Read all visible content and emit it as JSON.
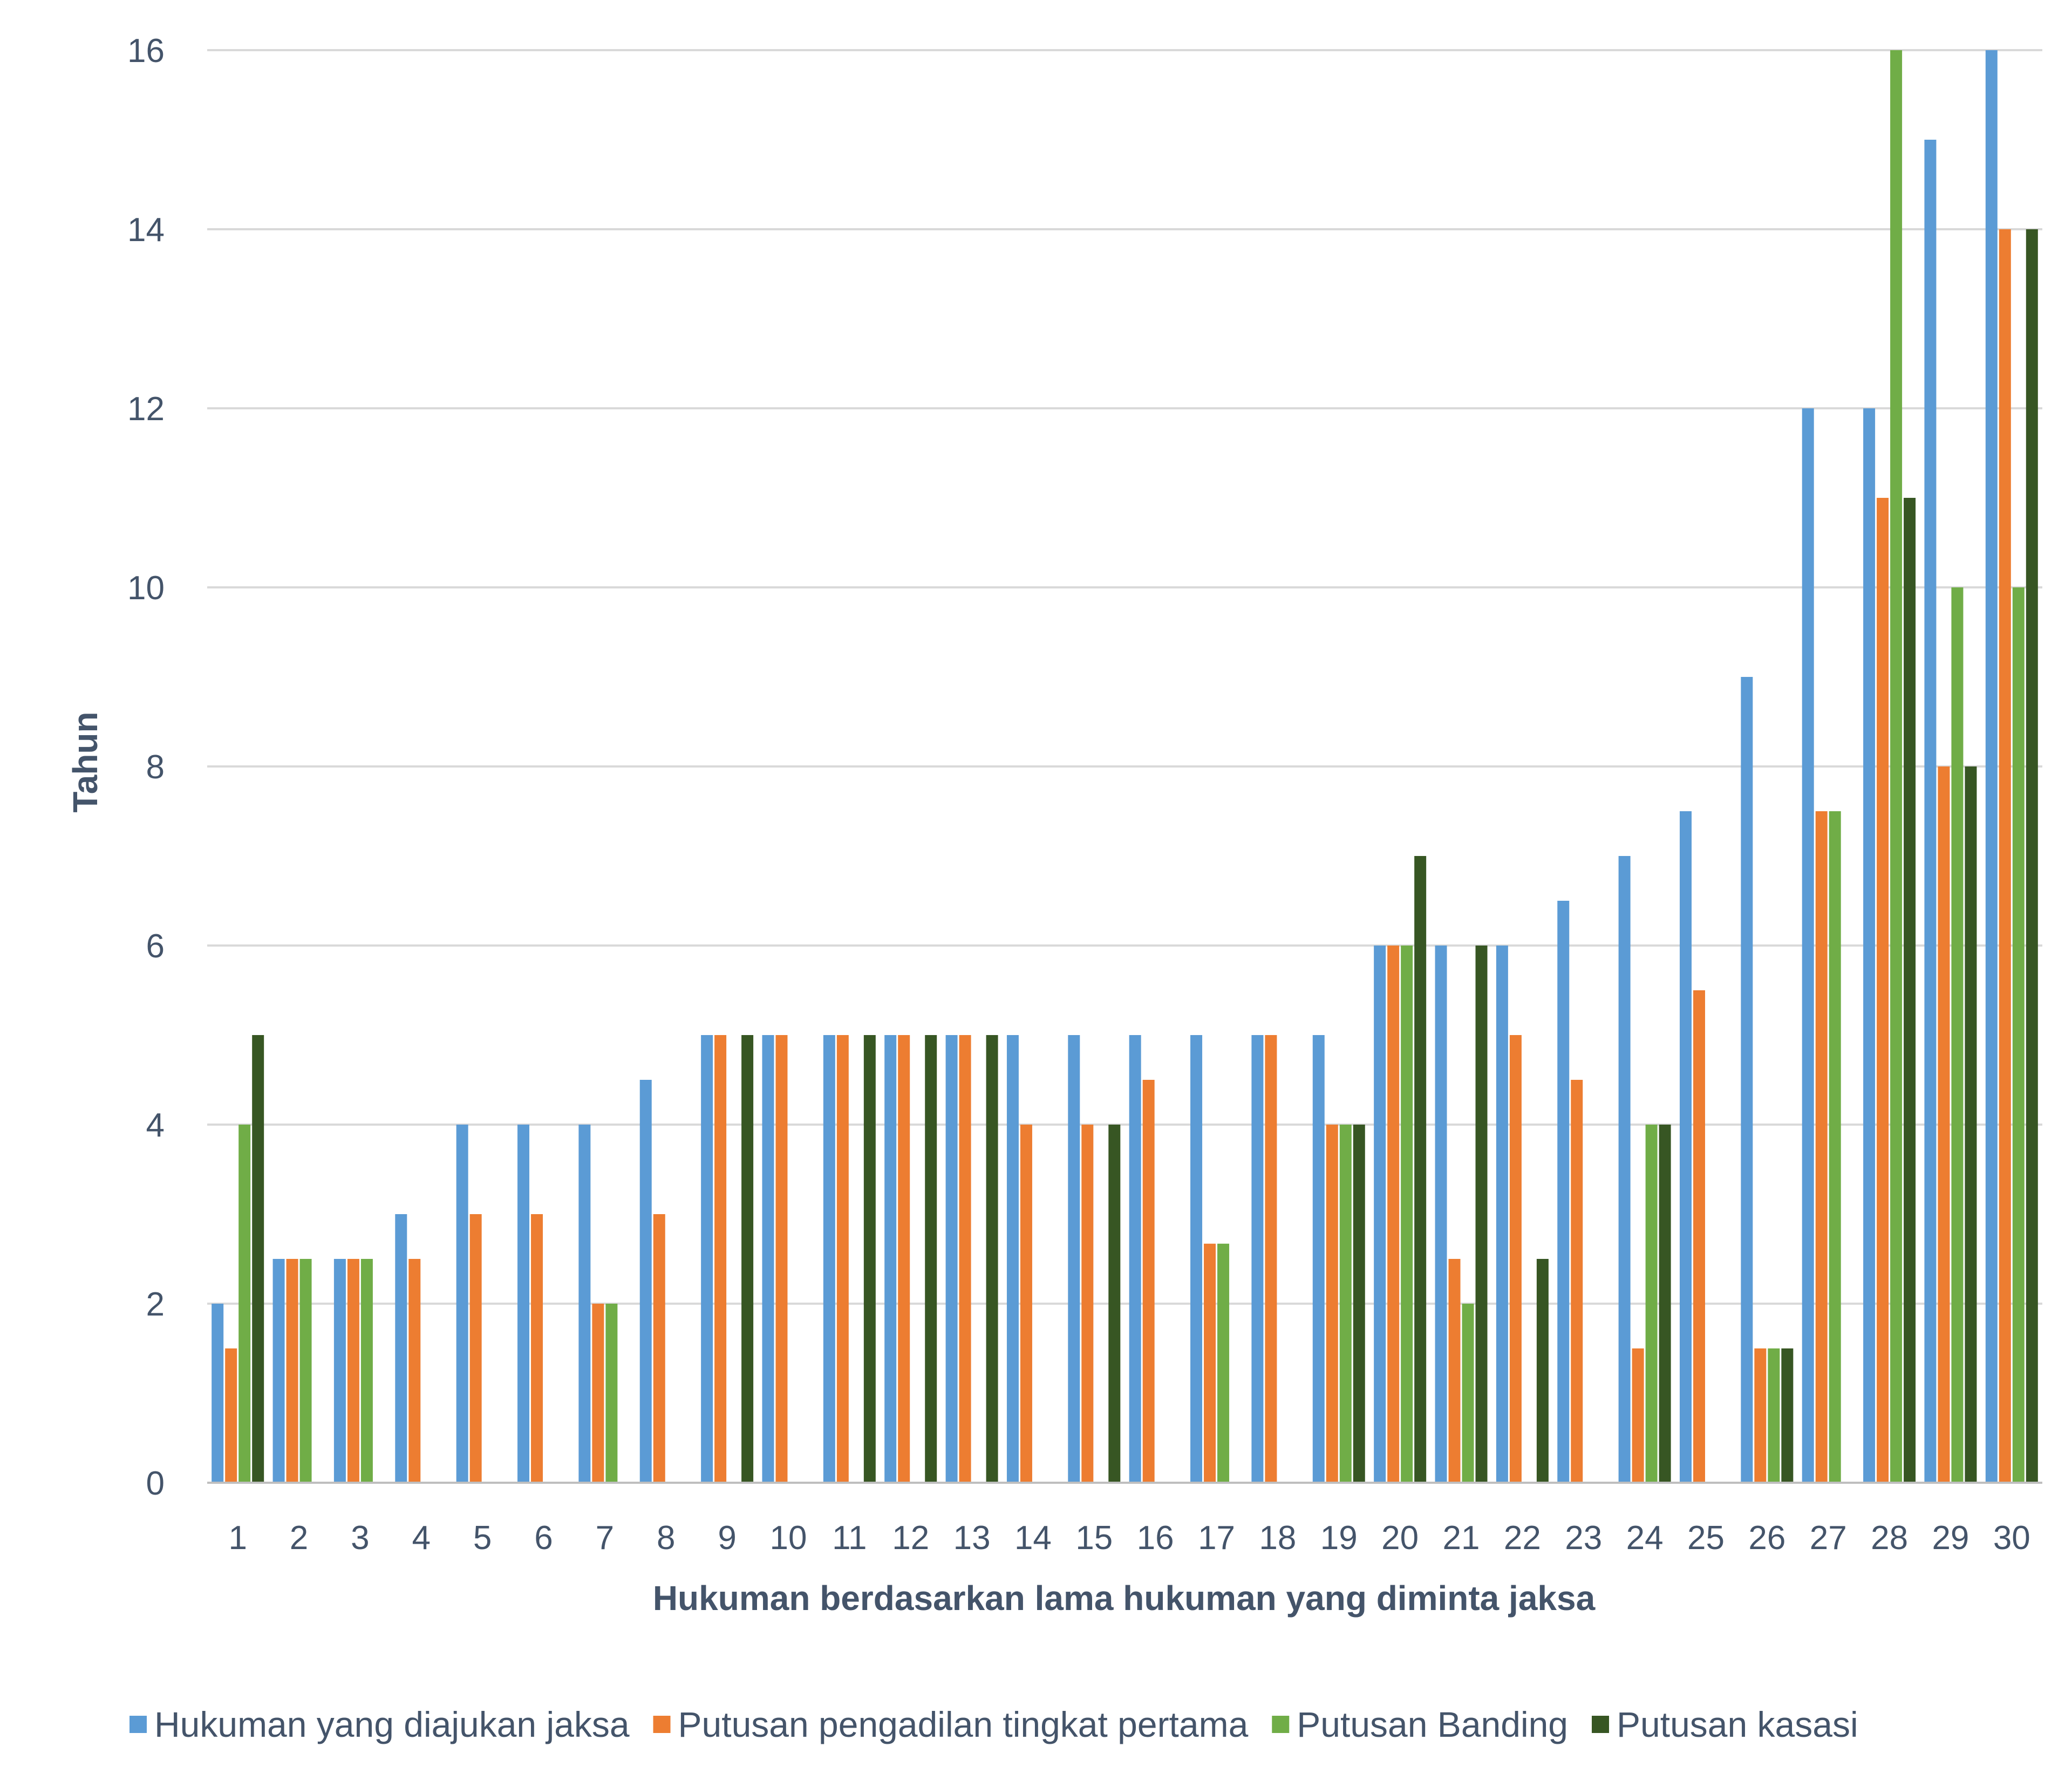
{
  "chart_data": {
    "type": "bar",
    "title": "",
    "xlabel": "Hukuman berdasarkan lama hukuman yang diminta jaksa",
    "ylabel": "Tahun",
    "ylim": [
      0,
      16
    ],
    "yticks": [
      "0",
      "2",
      "4",
      "6",
      "8",
      "10",
      "12",
      "14",
      "16"
    ],
    "grid": true,
    "legend_position": "bottom",
    "categories": [
      "1",
      "2",
      "3",
      "4",
      "5",
      "6",
      "7",
      "8",
      "9",
      "10",
      "11",
      "12",
      "13",
      "14",
      "15",
      "16",
      "17",
      "18",
      "19",
      "20",
      "21",
      "22",
      "23",
      "24",
      "25",
      "26",
      "27",
      "28",
      "29",
      "30"
    ],
    "series": [
      {
        "name": "Hukuman  yang diajukan jaksa",
        "color": "#5b9bd5",
        "values": [
          2,
          2.5,
          2.5,
          3,
          4,
          4,
          4,
          4.5,
          5,
          5,
          5,
          5,
          5,
          5,
          5,
          5,
          5,
          5,
          5,
          6,
          6,
          6,
          6.5,
          7,
          7.5,
          9,
          12,
          12,
          15,
          16
        ]
      },
      {
        "name": "Putusan pengadilan tingkat pertama",
        "color": "#ed7d31",
        "values": [
          1.5,
          2.5,
          2.5,
          2.5,
          3,
          3,
          2,
          3,
          5,
          5,
          5,
          5,
          5,
          4,
          4,
          4.5,
          2.67,
          5,
          4,
          6,
          2.5,
          5,
          4.5,
          1.5,
          5.5,
          1.5,
          7.5,
          11,
          8,
          14
        ]
      },
      {
        "name": "Putusan Banding",
        "color": "#70ad47",
        "values": [
          4,
          2.5,
          2.5,
          0,
          0,
          0,
          2,
          0,
          0,
          0,
          0,
          0,
          0,
          0,
          0,
          0,
          2.67,
          0,
          4,
          6,
          2,
          0,
          0,
          4,
          0,
          1.5,
          7.5,
          16,
          10,
          10
        ]
      },
      {
        "name": "Putusan kasasi",
        "color": "#375623",
        "values": [
          5,
          0,
          0,
          0,
          0,
          0,
          0,
          0,
          5,
          0,
          5,
          5,
          5,
          0,
          4,
          0,
          0,
          0,
          4,
          7,
          6,
          2.5,
          0,
          4,
          0,
          1.5,
          0,
          11,
          8,
          14
        ]
      }
    ]
  }
}
